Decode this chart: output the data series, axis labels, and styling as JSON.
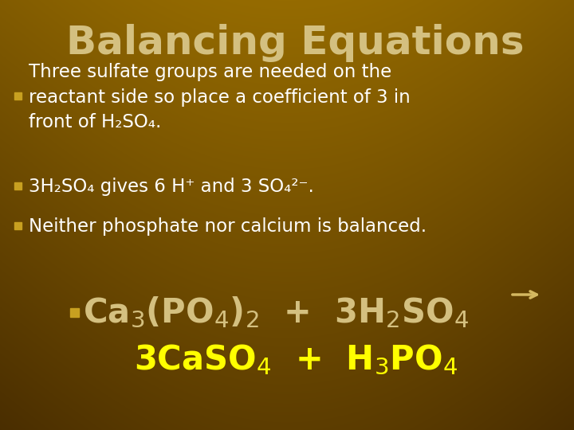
{
  "title": "Balancing Equations",
  "title_color": "#D4C080",
  "title_fontsize": 36,
  "bg_color_top": "#4A2800",
  "bg_color_mid": "#8B5E00",
  "bg_color_bot": "#7A4A00",
  "bullet_text_color": "#FFFFFF",
  "bullet_square_color": "#C8A020",
  "bullet_fontsize": 16.5,
  "eq1_color": "#D4C080",
  "eq2_color": "#FFFF00",
  "eq_fontsize": 30,
  "arrow_color": "#D4B860",
  "bullet1_lines": [
    "Three sulfate groups are needed on the",
    "reactant side so place a coefficient of 3 in",
    "front of H₂SO₄."
  ],
  "bullet2": "3H₂SO₄ gives 6 H⁺ and 3 SO₄²⁻.",
  "bullet3": "Neither phosphate nor calcium is balanced."
}
